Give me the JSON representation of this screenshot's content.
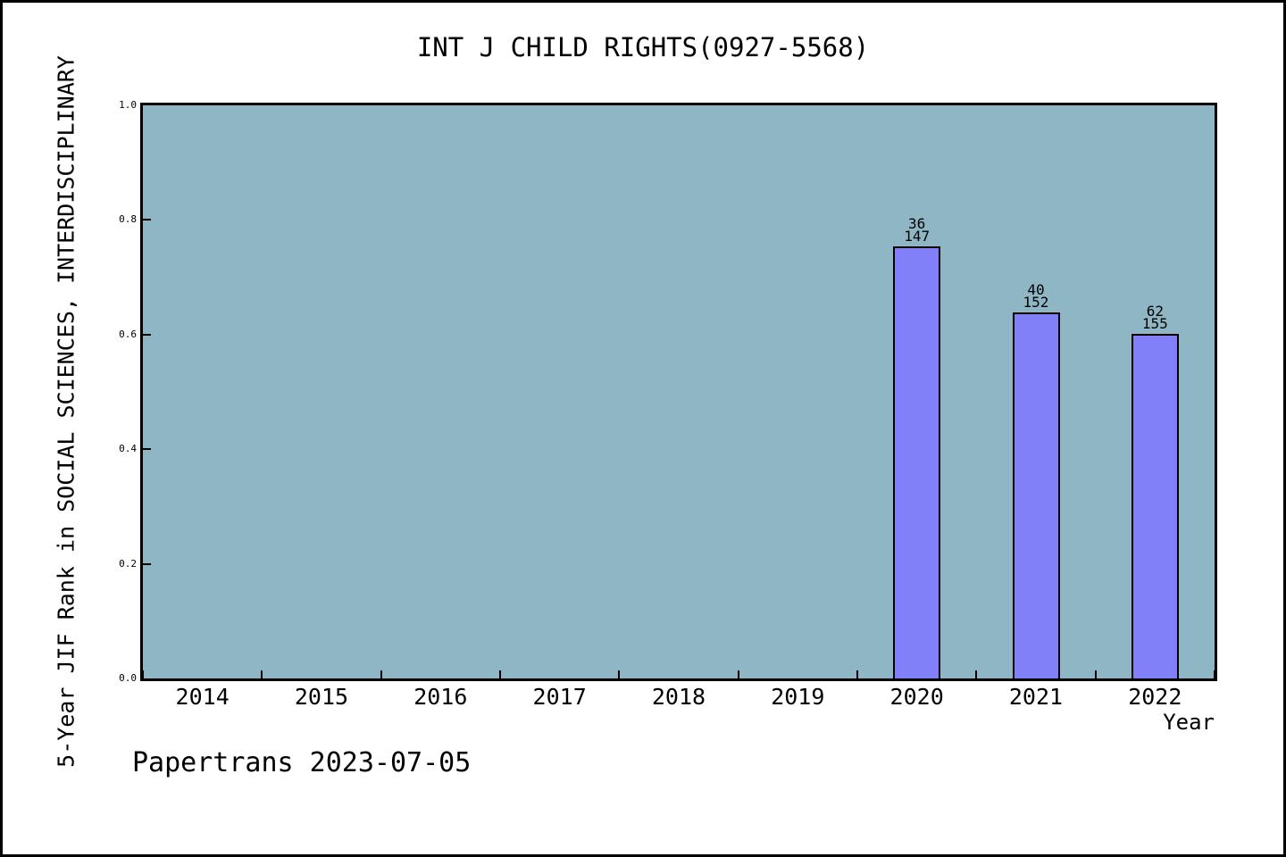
{
  "chart_data": {
    "type": "bar",
    "title": "INT J CHILD RIGHTS(0927-5568)",
    "xlabel": "Year",
    "ylabel": "5-Year JIF Rank in SOCIAL SCIENCES, INTERDISCIPLINARY",
    "categories": [
      "2014",
      "2015",
      "2016",
      "2017",
      "2018",
      "2019",
      "2020",
      "2021",
      "2022"
    ],
    "values": [
      null,
      null,
      null,
      null,
      null,
      null,
      0.754,
      0.639,
      0.601
    ],
    "annotations": [
      {
        "category": "2020",
        "rank": "36",
        "total": "147"
      },
      {
        "category": "2021",
        "rank": "40",
        "total": "152"
      },
      {
        "category": "2022",
        "rank": "62",
        "total": "155"
      }
    ],
    "ylim": [
      0.0,
      1.0
    ],
    "ytick_labels": [
      "0.0",
      "0.2",
      "0.4",
      "0.6",
      "0.8",
      "1.0"
    ],
    "grid": false,
    "legend": null,
    "layout": {
      "ticks": "inward",
      "x_ticks_at_cell_boundaries": true
    },
    "colors": {
      "plot_bg": "#8FB6C4",
      "bar_fill": "#8280F8",
      "bar_edge": "#000000",
      "axis": "#000000",
      "text": "#000000",
      "figure_bg": "#FFFFFF"
    }
  },
  "footer": "Papertrans 2023-07-05"
}
